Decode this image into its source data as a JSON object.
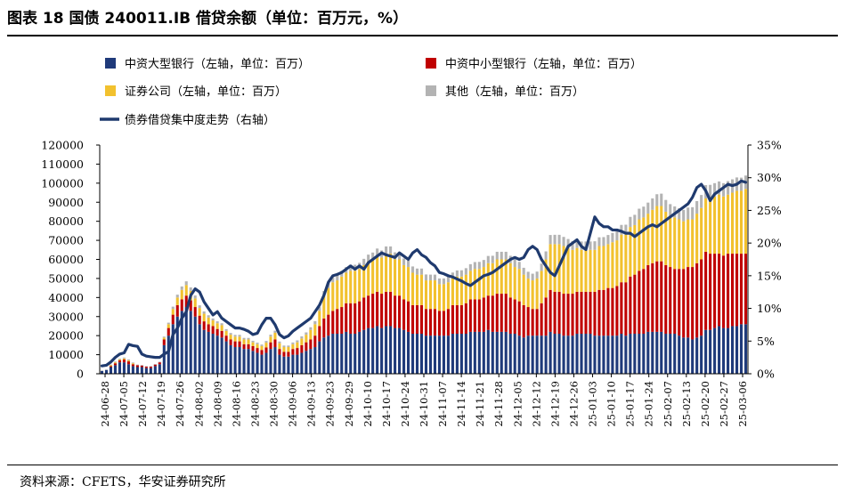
{
  "title": "图表 18  国债 240011.IB 借贷余额（单位：百万元，%）",
  "source": "资料来源：CFETS，华安证券研究所",
  "colors": {
    "big_bank": "#1f3a7a",
    "small_bank": "#c00000",
    "securities": "#f2c12e",
    "other": "#b3b3b3",
    "line": "#1f3a6e"
  },
  "chart_data": {
    "type": "bar",
    "stacked": true,
    "legend_position": "top",
    "legend": [
      {
        "key": "big",
        "label": "中资大型银行（左轴，单位：百万）"
      },
      {
        "key": "small",
        "label": "中资中小型银行（左轴，单位：百万）"
      },
      {
        "key": "sec",
        "label": "证券公司（左轴，单位：百万）"
      },
      {
        "key": "other",
        "label": "其他（左轴，单位：百万）"
      },
      {
        "key": "line",
        "label": "债券借贷集中度走势（右轴）"
      }
    ],
    "y_left": {
      "min": 0,
      "max": 120000,
      "ticks": [
        0,
        10000,
        20000,
        30000,
        40000,
        50000,
        60000,
        70000,
        80000,
        90000,
        100000,
        110000,
        120000
      ]
    },
    "y_right": {
      "min": 0,
      "max": 35,
      "ticks": [
        "0%",
        "5%",
        "10%",
        "15%",
        "20%",
        "25%",
        "30%",
        "35%"
      ]
    },
    "x_tick_labels": [
      "24-06-28",
      "24-07-05",
      "24-07-12",
      "24-07-19",
      "24-07-26",
      "24-08-02",
      "24-08-09",
      "24-08-16",
      "24-08-23",
      "24-08-30",
      "24-09-06",
      "24-09-13",
      "24-09-23",
      "24-09-29",
      "24-10-10",
      "24-10-17",
      "24-10-24",
      "24-10-31",
      "24-11-07",
      "24-11-14",
      "24-11-21",
      "24-11-28",
      "24-12-05",
      "24-12-12",
      "24-12-19",
      "24-12-26",
      "25-01-03",
      "25-01-10",
      "25-01-17",
      "25-01-24",
      "25-02-07",
      "25-02-13",
      "25-02-20",
      "25-02-27",
      "25-03-06"
    ],
    "series": [
      {
        "key": "big",
        "name": "中资大型银行（左轴，单位：百万）",
        "values": [
          1500,
          2000,
          3500,
          4500,
          6000,
          6000,
          5000,
          4000,
          3500,
          3500,
          3000,
          3000,
          4000,
          5000,
          15000,
          20000,
          26000,
          30000,
          33000,
          35000,
          33000,
          30000,
          26000,
          23000,
          22000,
          21000,
          20000,
          19000,
          17000,
          15000,
          14000,
          14000,
          13000,
          13000,
          12000,
          11000,
          10000,
          11000,
          13000,
          14000,
          10000,
          9000,
          9000,
          10000,
          10000,
          11000,
          12000,
          13000,
          14000,
          17000,
          19000,
          20000,
          21000,
          21000,
          21000,
          22000,
          21000,
          21000,
          22000,
          23000,
          24000,
          24000,
          25000,
          24000,
          25000,
          25000,
          24000,
          24000,
          23000,
          22000,
          21000,
          21000,
          21000,
          20000,
          20000,
          20000,
          20000,
          20000,
          20000,
          21000,
          21000,
          21000,
          21000,
          22000,
          22000,
          22000,
          22000,
          23000,
          22000,
          22000,
          22000,
          22000,
          21000,
          21000,
          20000,
          19000,
          20000,
          20000,
          20000,
          20000,
          20000,
          22000,
          21000,
          21000,
          20000,
          20000,
          20000,
          21000,
          21000,
          21000,
          21000,
          20000,
          20000,
          20000,
          20000,
          20000,
          20000,
          21000,
          20000,
          21000,
          21000,
          21000,
          21000,
          22000,
          22000,
          22000,
          22000,
          21000,
          21000,
          21000,
          20000,
          19000,
          19000,
          18000,
          19000,
          20000,
          23000,
          23000,
          24000,
          25000,
          24000,
          24000,
          25000,
          25000,
          26000,
          26000
        ]
      },
      {
        "key": "small",
        "name": "中资中小型银行（左轴，单位：百万）",
        "values": [
          0,
          0,
          500,
          1000,
          1000,
          1500,
          1500,
          1000,
          1000,
          800,
          700,
          700,
          800,
          1000,
          3000,
          4000,
          5000,
          6000,
          6000,
          6000,
          5500,
          5000,
          4500,
          4500,
          4000,
          4000,
          3500,
          3500,
          3000,
          3000,
          3000,
          3000,
          2500,
          2500,
          2500,
          2500,
          2500,
          2800,
          3500,
          4000,
          3000,
          2500,
          2500,
          3000,
          3500,
          4000,
          4500,
          5000,
          6000,
          8000,
          10000,
          11000,
          12000,
          13000,
          14000,
          15000,
          16000,
          16000,
          16000,
          17000,
          17000,
          18000,
          18000,
          18000,
          18000,
          18000,
          17000,
          17000,
          16000,
          16000,
          15000,
          15000,
          15000,
          14000,
          14000,
          14000,
          13000,
          13000,
          14000,
          15000,
          15000,
          15000,
          16000,
          17000,
          17000,
          17000,
          18000,
          18000,
          19000,
          20000,
          20000,
          20000,
          19000,
          18000,
          18000,
          17000,
          15000,
          14000,
          14000,
          17000,
          20000,
          22000,
          22000,
          22000,
          22000,
          22000,
          22000,
          22000,
          22000,
          22000,
          22000,
          23000,
          24000,
          24000,
          25000,
          25000,
          26000,
          27000,
          28000,
          30000,
          31000,
          33000,
          34000,
          35000,
          36000,
          37000,
          37000,
          36000,
          35000,
          34000,
          35000,
          36000,
          37000,
          38000,
          39000,
          40000,
          41000,
          40000,
          39000,
          38000,
          38000,
          39000,
          38000,
          38000,
          37000,
          37000
        ]
      },
      {
        "key": "sec",
        "name": "证券公司（左轴，单位：百万）",
        "values": [
          0,
          0,
          500,
          500,
          500,
          500,
          500,
          500,
          0,
          0,
          0,
          0,
          0,
          0,
          1000,
          2000,
          3000,
          4000,
          5000,
          5500,
          5000,
          4500,
          4000,
          4000,
          3500,
          3000,
          3000,
          3000,
          2500,
          2500,
          2500,
          2500,
          2500,
          2500,
          2000,
          2000,
          2000,
          2500,
          3000,
          3500,
          3000,
          2500,
          2500,
          2500,
          3000,
          3500,
          4000,
          5000,
          6000,
          8000,
          12000,
          14000,
          15000,
          15000,
          16000,
          16000,
          17000,
          17000,
          17000,
          17000,
          18000,
          18000,
          19000,
          19000,
          20000,
          20000,
          19000,
          19000,
          18000,
          18000,
          17000,
          16000,
          16000,
          15000,
          15000,
          15000,
          14000,
          14000,
          14000,
          14000,
          15000,
          15000,
          15000,
          15000,
          16000,
          16000,
          16000,
          17000,
          17000,
          18000,
          18000,
          18000,
          18000,
          17000,
          17000,
          16000,
          15000,
          15000,
          16000,
          17000,
          20000,
          24000,
          25000,
          25000,
          25000,
          24000,
          23000,
          23000,
          22000,
          22000,
          22000,
          22000,
          23000,
          23000,
          23000,
          24000,
          24000,
          25000,
          25000,
          26000,
          26000,
          27000,
          27000,
          27000,
          28000,
          29000,
          29000,
          28000,
          27000,
          27000,
          26000,
          25000,
          25000,
          25000,
          26000,
          27000,
          28000,
          29000,
          30000,
          31000,
          31000,
          31000,
          32000,
          33000,
          33000,
          34000
        ]
      },
      {
        "key": "other",
        "name": "其他（左轴，单位：百万）",
        "values": [
          200,
          200,
          300,
          400,
          400,
          500,
          500,
          400,
          300,
          300,
          300,
          300,
          300,
          300,
          500,
          800,
          1200,
          1500,
          1800,
          2000,
          1800,
          1600,
          1400,
          1200,
          1200,
          1000,
          1000,
          1000,
          900,
          900,
          900,
          900,
          800,
          800,
          800,
          800,
          800,
          900,
          1000,
          1100,
          900,
          800,
          800,
          900,
          1000,
          1100,
          1200,
          1400,
          1600,
          2000,
          2400,
          2700,
          2800,
          2900,
          3000,
          3000,
          3200,
          3200,
          3200,
          3300,
          3500,
          3600,
          3700,
          3700,
          3800,
          3800,
          3700,
          3600,
          3500,
          3400,
          3300,
          3200,
          3200,
          3100,
          3000,
          3000,
          3000,
          3000,
          3000,
          3100,
          3200,
          3300,
          3400,
          3500,
          3600,
          3700,
          3700,
          3800,
          3900,
          4000,
          4000,
          4000,
          3900,
          3800,
          3700,
          3600,
          3500,
          3500,
          3600,
          3800,
          4200,
          4800,
          4900,
          4900,
          4800,
          4700,
          4600,
          4500,
          4400,
          4400,
          4400,
          4500,
          4600,
          4700,
          4800,
          4900,
          5000,
          5100,
          5200,
          5300,
          5400,
          5600,
          5700,
          5800,
          6000,
          6200,
          6500,
          6200,
          6000,
          5800,
          5900,
          6000,
          6200,
          6400,
          6600,
          6800,
          7000,
          7100,
          7000,
          6900,
          7000,
          7100,
          7000,
          7000,
          6900,
          7000
        ]
      },
      {
        "key": "line",
        "name": "债券借贷集中度走势（右轴）",
        "values": [
          1.2,
          1.3,
          1.8,
          2.5,
          3.0,
          3.2,
          4.5,
          4.3,
          4.2,
          3.0,
          2.7,
          2.6,
          2.5,
          2.5,
          3.0,
          3.4,
          6.0,
          7.0,
          8.5,
          9.5,
          12.0,
          13.0,
          12.5,
          11.0,
          10.0,
          9.0,
          9.5,
          8.5,
          8.0,
          7.5,
          7.0,
          7.0,
          6.8,
          6.5,
          6.0,
          6.2,
          7.5,
          8.5,
          8.5,
          7.5,
          6.0,
          5.5,
          5.8,
          6.5,
          7.0,
          7.5,
          8.0,
          8.5,
          9.5,
          10.5,
          12.0,
          14.0,
          15.0,
          15.2,
          15.5,
          16.0,
          16.5,
          16.0,
          16.5,
          16.0,
          17.0,
          17.5,
          18.0,
          18.5,
          18.2,
          18.0,
          17.8,
          18.5,
          18.0,
          17.5,
          18.5,
          19.0,
          18.2,
          17.8,
          17.0,
          16.5,
          15.5,
          15.3,
          15.0,
          14.8,
          14.5,
          14.2,
          13.8,
          13.5,
          14.0,
          14.5,
          15.0,
          15.2,
          15.5,
          16.0,
          16.5,
          17.0,
          17.5,
          17.8,
          17.5,
          17.8,
          19.0,
          19.5,
          19.0,
          17.5,
          16.5,
          15.5,
          15.0,
          16.5,
          18.0,
          19.5,
          20.0,
          20.5,
          19.5,
          19.0,
          21.5,
          24.0,
          23.0,
          22.5,
          22.5,
          22.0,
          22.0,
          21.8,
          21.5,
          21.5,
          21.0,
          21.5,
          22.0,
          22.5,
          22.8,
          22.5,
          23.0,
          23.5,
          24.0,
          24.5,
          25.0,
          25.5,
          26.0,
          27.0,
          28.5,
          29.0,
          28.0,
          26.5,
          27.5,
          28.0,
          28.5,
          29.0,
          28.8,
          29.0,
          29.5,
          29.3
        ]
      }
    ]
  }
}
